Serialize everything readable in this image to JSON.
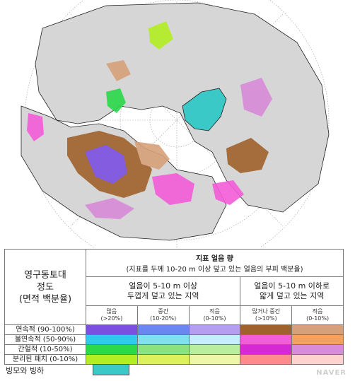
{
  "legend": {
    "left_header": [
      "영구동토대",
      "정도",
      "(면적 백분율)"
    ],
    "main_title": "지표 얼음 량",
    "main_subtitle": "(지표를 두께 10-20 m 이상 덮고 있는 얼음의 부피 백분율)",
    "group_thick": [
      "얼음이 5-10 m 이상",
      "두껍게 덮고 있는 지역"
    ],
    "group_thin": [
      "얼음이 5-10 m 이하로",
      "얇게 덮고 있는 지역"
    ],
    "sub_headers": [
      {
        "name": "많음",
        "range": "(>20%)"
      },
      {
        "name": "중간",
        "range": "(10-20%)"
      },
      {
        "name": "적음",
        "range": "(0-10%)"
      },
      {
        "name": "많거나 중간",
        "range": "(>10%)"
      },
      {
        "name": "적음",
        "range": "(0-10%)"
      }
    ],
    "rows": [
      {
        "label": "연속적 (90-100%)",
        "colors": [
          "#7b4fe0",
          "#6a86f0",
          "#b59df0",
          "#a0622c",
          "#d6a07a"
        ]
      },
      {
        "label": "불연속적 (50-90%)",
        "colors": [
          "#33c9ee",
          "#7fe1ee",
          "#c3eeff",
          "#f35bd9",
          "#f4a15e"
        ]
      },
      {
        "label": "간헐적 (10-50%)",
        "colors": [
          "#2bd94a",
          "#8ce27f",
          "#b8ee9e",
          "#d52ad3",
          "#d88bd8"
        ]
      },
      {
        "label": "분리된 패치 (0-10%)",
        "colors": [
          "#b3ee22",
          "#dcf15c",
          "#eef7a7",
          "#ff8c8c",
          "#ffd1cf"
        ]
      }
    ]
  },
  "glacier_label": "빙모와 빙하",
  "glacier_color": "#3ac9c6",
  "watermark": "NAVER",
  "map": {
    "ocean_color": "#ffffff",
    "land_color": "#d6d6d6",
    "grid_color": "#9a9a9a"
  }
}
